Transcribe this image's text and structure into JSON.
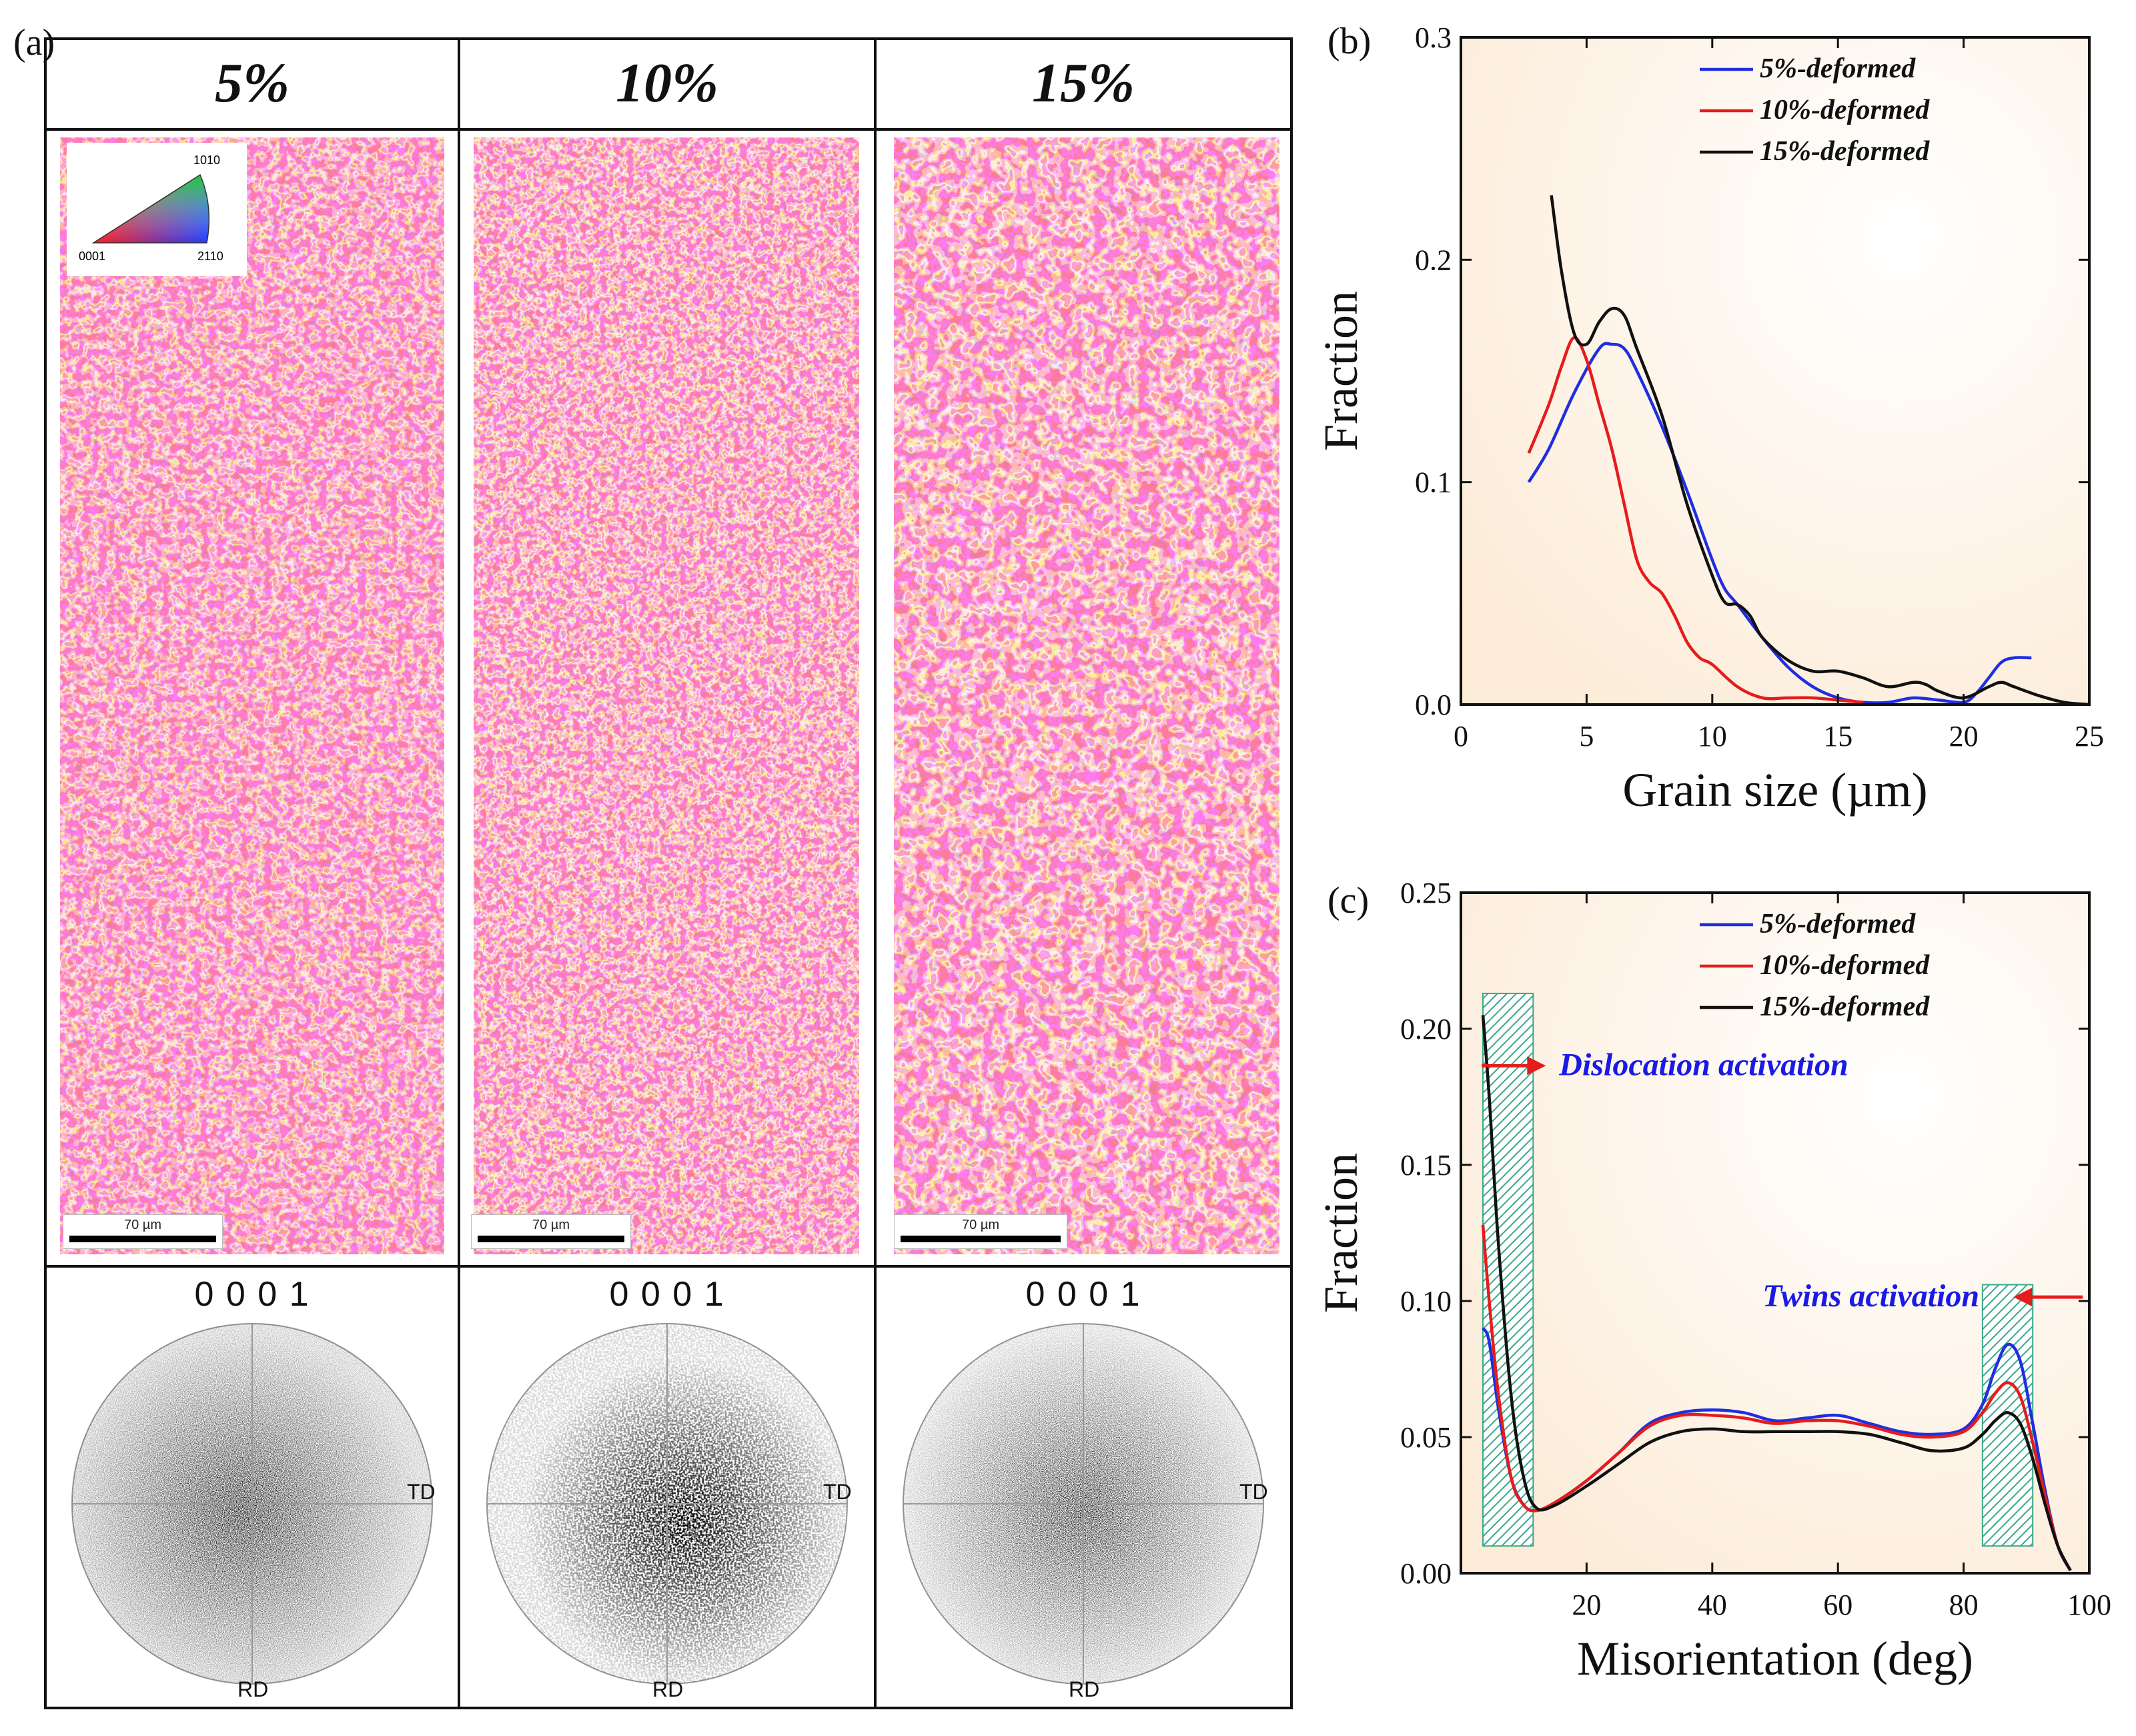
{
  "figure": {
    "panel_a_label": "(a)",
    "panel_b_label": "(b)",
    "panel_c_label": "(c)"
  },
  "columns": [
    {
      "header": "5%",
      "scale_bar": "70 µm",
      "pole_title": "0 0 0 1",
      "td_label": "TD",
      "rd_label": "RD"
    },
    {
      "header": "10%",
      "scale_bar": "70 µm",
      "pole_title": "0 0 0 1",
      "td_label": "TD",
      "rd_label": "RD"
    },
    {
      "header": "15%",
      "scale_bar": "70 µm",
      "pole_title": "0 0 0 1",
      "td_label": "TD",
      "rd_label": "RD"
    }
  ],
  "ipf_legend": {
    "top": "1010",
    "left": "0001",
    "right": "2110"
  },
  "colors": {
    "blue": "#1f2fe0",
    "red": "#e51c1c",
    "black": "#111111",
    "plot_bg": "#fcebd6",
    "hatch": "#3aa88a",
    "annotation_text": "#1a1ae6",
    "arrow": "#e51c1c"
  },
  "chart_data": [
    {
      "id": "b",
      "type": "line",
      "title": "",
      "xlabel": "Grain size (µm)",
      "ylabel": "Fraction",
      "xlim": [
        0,
        25
      ],
      "ylim": [
        0,
        0.3
      ],
      "xticks": [
        0,
        5,
        10,
        15,
        20,
        25
      ],
      "yticks": [
        0.0,
        0.1,
        0.2,
        0.3
      ],
      "ytick_labels": [
        "0.0",
        "0.1",
        "0.2",
        "0.3"
      ],
      "legend": "top-right",
      "series": [
        {
          "name": "5%-deformed",
          "color": "#1f2fe0",
          "x": [
            2.7,
            3.5,
            4.5,
            5.5,
            6.0,
            6.5,
            7.0,
            8.0,
            9.0,
            10.0,
            10.5,
            11.0,
            12.0,
            13.0,
            14.0,
            15.0,
            16.0,
            17.0,
            18.0,
            19.0,
            20.0,
            20.5,
            21.0,
            21.5,
            22.0,
            22.7
          ],
          "y": [
            0.1,
            0.115,
            0.14,
            0.16,
            0.162,
            0.16,
            0.15,
            0.125,
            0.096,
            0.065,
            0.052,
            0.045,
            0.03,
            0.017,
            0.008,
            0.003,
            0.001,
            0.001,
            0.003,
            0.002,
            0.001,
            0.005,
            0.012,
            0.019,
            0.021,
            0.021
          ]
        },
        {
          "name": "10%-deformed",
          "color": "#e51c1c",
          "x": [
            2.7,
            3.5,
            4.0,
            4.5,
            5.0,
            5.5,
            6.0,
            6.5,
            7.0,
            7.5,
            8.0,
            8.5,
            9.0,
            9.5,
            10.0,
            11.0,
            12.0,
            13.0,
            14.0,
            15.0,
            16.0
          ],
          "y": [
            0.113,
            0.135,
            0.152,
            0.165,
            0.155,
            0.135,
            0.115,
            0.09,
            0.065,
            0.055,
            0.05,
            0.04,
            0.028,
            0.021,
            0.018,
            0.008,
            0.003,
            0.003,
            0.003,
            0.002,
            0.001
          ]
        },
        {
          "name": "15%-deformed",
          "color": "#111111",
          "x": [
            3.6,
            4.0,
            4.5,
            5.0,
            5.5,
            6.0,
            6.5,
            7.0,
            8.0,
            9.0,
            10.0,
            10.5,
            11.0,
            11.5,
            12.0,
            13.0,
            14.0,
            15.0,
            16.0,
            17.0,
            18.0,
            18.5,
            19.0,
            20.0,
            21.0,
            21.5,
            22.0,
            23.0,
            24.0,
            25.0
          ],
          "y": [
            0.229,
            0.195,
            0.167,
            0.162,
            0.172,
            0.178,
            0.175,
            0.16,
            0.13,
            0.09,
            0.058,
            0.046,
            0.045,
            0.04,
            0.03,
            0.02,
            0.015,
            0.015,
            0.012,
            0.008,
            0.01,
            0.009,
            0.006,
            0.003,
            0.008,
            0.01,
            0.008,
            0.004,
            0.001,
            0.0
          ]
        }
      ]
    },
    {
      "id": "c",
      "type": "line",
      "title": "",
      "xlabel": "Misorientation (deg)",
      "ylabel": "Fraction",
      "xlim": [
        0,
        100
      ],
      "ylim": [
        0,
        0.25
      ],
      "xticks": [
        20,
        40,
        60,
        80,
        100
      ],
      "yticks": [
        0.0,
        0.05,
        0.1,
        0.15,
        0.2,
        0.25
      ],
      "ytick_labels": [
        "0.00",
        "0.05",
        "0.10",
        "0.15",
        "0.20",
        "0.25"
      ],
      "legend": "top-right",
      "series": [
        {
          "name": "5%-deformed",
          "color": "#1f2fe0",
          "x": [
            3.5,
            4.5,
            6,
            8,
            10,
            12,
            15,
            20,
            25,
            30,
            35,
            40,
            45,
            50,
            55,
            60,
            65,
            70,
            75,
            80,
            83,
            85,
            87,
            89,
            91,
            93,
            95,
            97
          ],
          "y": [
            0.09,
            0.085,
            0.06,
            0.035,
            0.025,
            0.023,
            0.026,
            0.034,
            0.044,
            0.055,
            0.059,
            0.06,
            0.059,
            0.056,
            0.057,
            0.058,
            0.055,
            0.052,
            0.051,
            0.053,
            0.062,
            0.075,
            0.084,
            0.078,
            0.055,
            0.03,
            0.01,
            0.001
          ]
        },
        {
          "name": "10%-deformed",
          "color": "#e51c1c",
          "x": [
            3.5,
            4.5,
            6,
            8,
            10,
            12,
            15,
            20,
            25,
            30,
            35,
            40,
            45,
            50,
            55,
            60,
            65,
            70,
            75,
            80,
            83,
            85,
            87,
            89,
            91,
            93,
            95,
            97
          ],
          "y": [
            0.128,
            0.1,
            0.065,
            0.035,
            0.025,
            0.023,
            0.026,
            0.034,
            0.044,
            0.054,
            0.058,
            0.058,
            0.057,
            0.055,
            0.056,
            0.056,
            0.054,
            0.051,
            0.05,
            0.052,
            0.059,
            0.066,
            0.07,
            0.065,
            0.048,
            0.028,
            0.01,
            0.001
          ]
        },
        {
          "name": "15%-deformed",
          "color": "#111111",
          "x": [
            3.5,
            4.5,
            6,
            8,
            10,
            12,
            15,
            20,
            25,
            30,
            35,
            40,
            45,
            50,
            55,
            60,
            65,
            70,
            75,
            80,
            83,
            85,
            87,
            89,
            91,
            93,
            95,
            97
          ],
          "y": [
            0.205,
            0.175,
            0.12,
            0.065,
            0.035,
            0.024,
            0.025,
            0.032,
            0.04,
            0.048,
            0.052,
            0.053,
            0.052,
            0.052,
            0.052,
            0.052,
            0.051,
            0.048,
            0.045,
            0.046,
            0.051,
            0.056,
            0.059,
            0.055,
            0.042,
            0.025,
            0.01,
            0.001
          ]
        }
      ],
      "shaded_regions": [
        {
          "x": [
            3.5,
            11.5
          ],
          "y": [
            0.01,
            0.213
          ]
        },
        {
          "x": [
            83,
            91
          ],
          "y": [
            0.01,
            0.106
          ]
        }
      ],
      "annotations": [
        {
          "text": "Dislocation activation",
          "x": 15,
          "y": 0.183,
          "arrow": "right"
        },
        {
          "text": "Twins activation",
          "x": 48,
          "y": 0.098,
          "arrow": "left"
        }
      ]
    }
  ]
}
